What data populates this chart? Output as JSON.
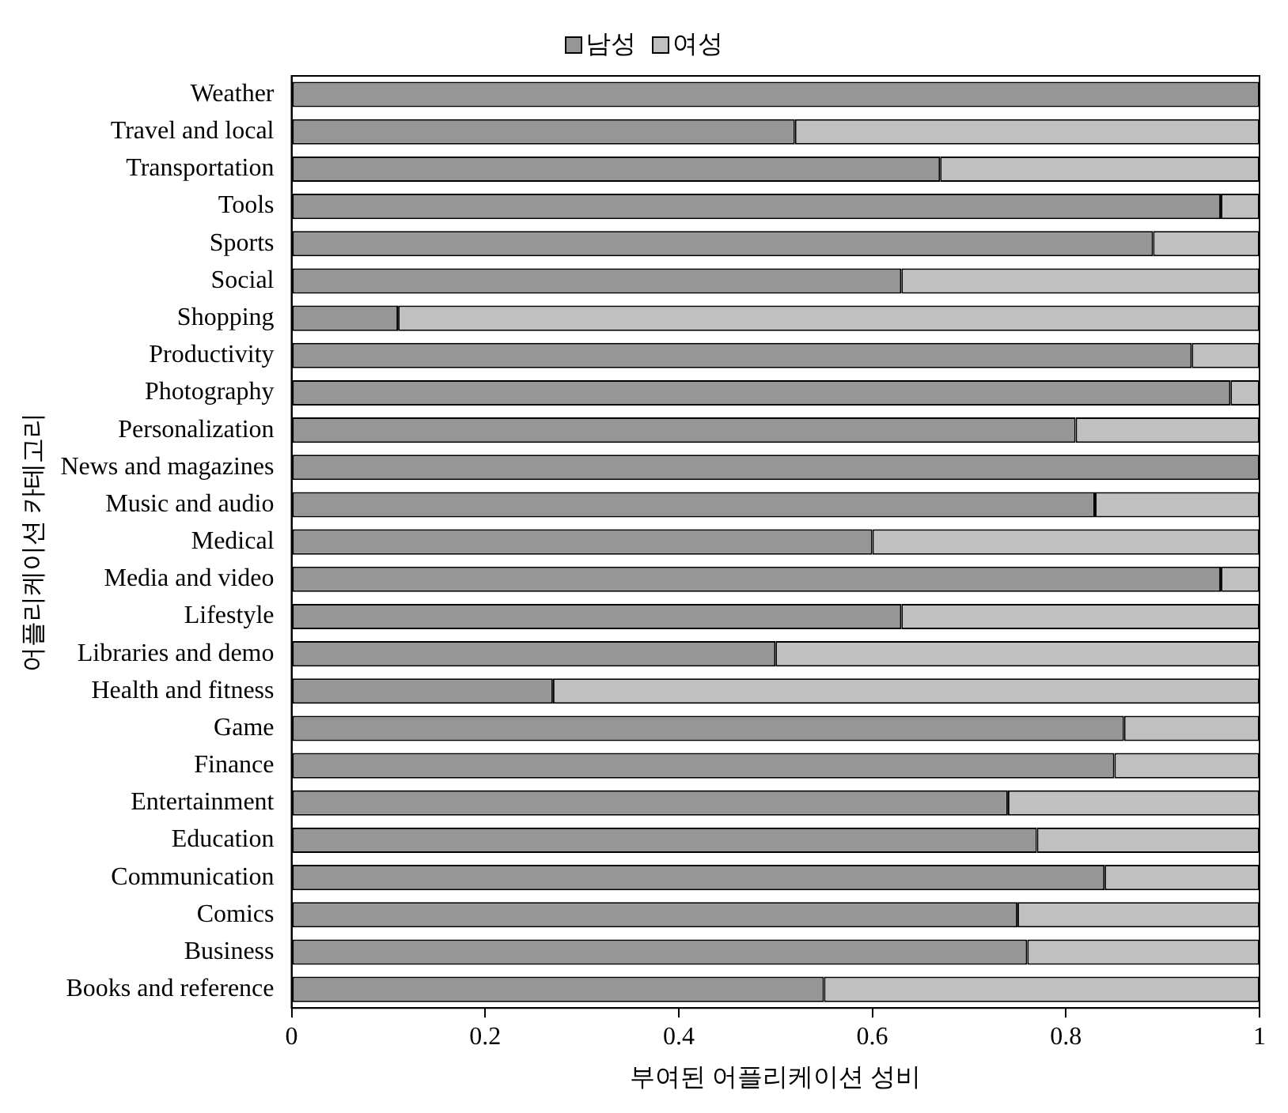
{
  "chart_data": {
    "type": "bar",
    "orientation": "horizontal",
    "stacked": true,
    "xlabel": "부여된 어플리케이션 성비",
    "ylabel": "어플리케이션 카테고리",
    "categories": [
      "Weather",
      "Travel and local",
      "Transportation",
      "Tools",
      "Sports",
      "Social",
      "Shopping",
      "Productivity",
      "Photography",
      "Personalization",
      "News and magazines",
      "Music and audio",
      "Medical",
      "Media and video",
      "Lifestyle",
      "Libraries and demo",
      "Health and fitness",
      "Game",
      "Finance",
      "Entertainment",
      "Education",
      "Communication",
      "Comics",
      "Business",
      "Books and reference"
    ],
    "series": [
      {
        "name": "남성",
        "color": "#969696",
        "values": [
          1,
          0.52,
          0.67,
          0.96,
          0.89,
          0.63,
          0.11,
          0.93,
          0.97,
          0.81,
          1,
          0.83,
          0.6,
          0.96,
          0.63,
          0.5,
          0.27,
          0.86,
          0.85,
          0.74,
          0.77,
          0.84,
          0.75,
          0.76,
          0.55
        ]
      },
      {
        "name": "여성",
        "color": "#c0c0c0",
        "values": [
          0,
          0.48,
          0.33,
          0.04,
          0.11,
          0.37,
          0.89,
          0.07,
          0.03,
          0.19,
          0,
          0.17,
          0.4,
          0.04,
          0.37,
          0.5,
          0.73,
          0.14,
          0.15,
          0.26,
          0.23,
          0.16,
          0.25,
          0.24,
          0.45
        ]
      }
    ],
    "xlim": [
      0,
      1
    ],
    "xticks": [
      0,
      0.2,
      0.4,
      0.6,
      0.8,
      1
    ],
    "grid": false,
    "legend": "top"
  }
}
